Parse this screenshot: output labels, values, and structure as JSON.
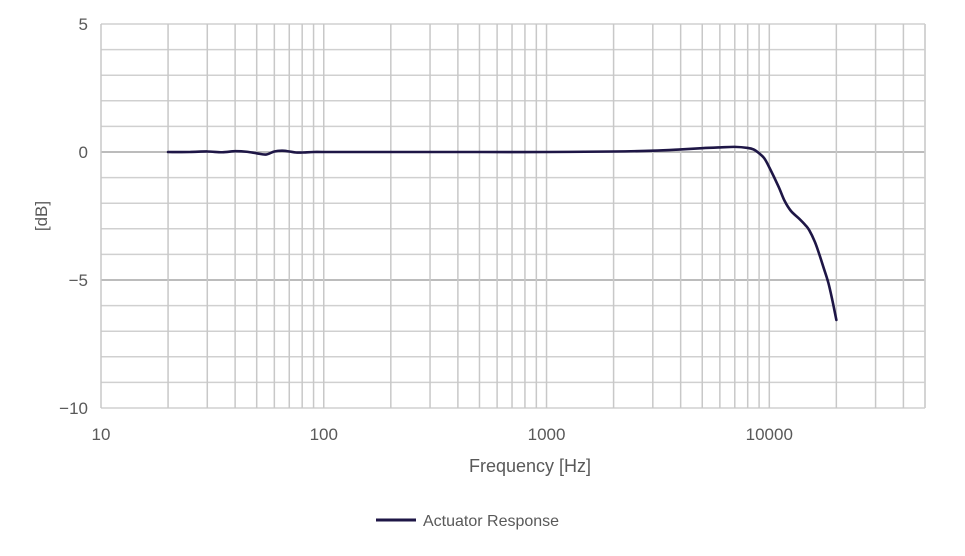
{
  "chart_data": {
    "type": "line",
    "title": "",
    "xlabel": "Frequency [Hz]",
    "ylabel": "[dB]",
    "x_scale": "log",
    "xlim": [
      10,
      50000
    ],
    "ylim": [
      -10,
      5
    ],
    "x_ticks": [
      10,
      100,
      1000,
      10000
    ],
    "x_tick_labels": [
      "10",
      "100",
      "1000",
      "10000"
    ],
    "y_ticks": [
      5,
      0,
      -5,
      -10
    ],
    "y_tick_labels": [
      "5",
      "0",
      "−5",
      "−10"
    ],
    "grid": true,
    "legend": "bottom",
    "series": [
      {
        "name": "Actuator Response",
        "color": "#1e1646",
        "x": [
          20,
          25,
          30,
          35,
          40,
          45,
          50,
          55,
          60,
          65,
          70,
          75,
          80,
          90,
          100,
          150,
          200,
          300,
          500,
          1000,
          2000,
          3000,
          4000,
          5000,
          6000,
          7000,
          8000,
          8500,
          9000,
          9500,
          10000,
          11000,
          11700,
          12500,
          13600,
          14500,
          15100,
          16000,
          16700,
          17500,
          18400,
          19200,
          20000
        ],
        "y": [
          0,
          0,
          0.02,
          -0.01,
          0.03,
          0.01,
          -0.05,
          -0.1,
          0.02,
          0.05,
          0.02,
          -0.02,
          -0.02,
          0,
          0,
          0,
          0,
          0,
          0,
          0,
          0.02,
          0.05,
          0.1,
          0.15,
          0.18,
          0.2,
          0.16,
          0.1,
          -0.05,
          -0.25,
          -0.6,
          -1.35,
          -1.9,
          -2.3,
          -2.6,
          -2.85,
          -3.05,
          -3.5,
          -3.95,
          -4.5,
          -5.1,
          -5.8,
          -6.56
        ]
      }
    ]
  }
}
